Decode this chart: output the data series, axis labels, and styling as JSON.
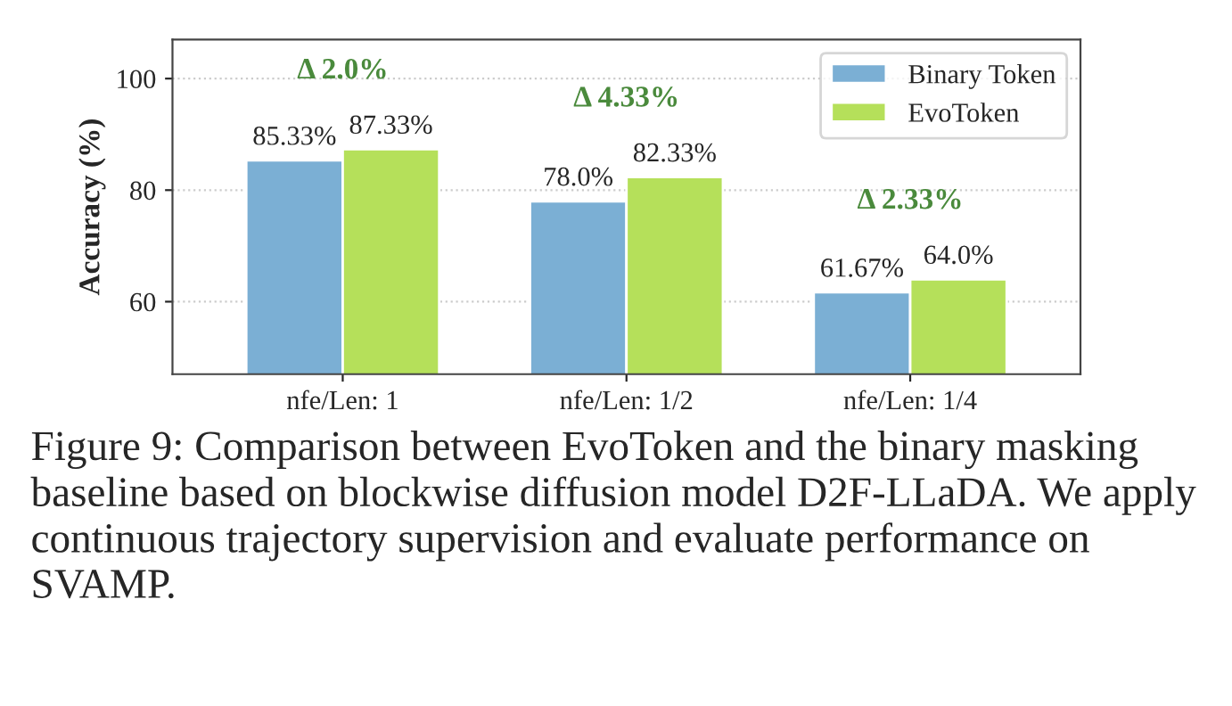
{
  "chart_data": {
    "type": "bar",
    "ylabel": "Accuracy (%)",
    "categories": [
      "nfe/Len: 1",
      "nfe/Len: 1/2",
      "nfe/Len: 1/4"
    ],
    "series": [
      {
        "name": "Binary Token",
        "color": "#7bafd4",
        "values": [
          85.33,
          78.0,
          61.67
        ],
        "value_labels": [
          "85.33%",
          "78.0%",
          "61.67%"
        ]
      },
      {
        "name": "EvoToken",
        "color": "#b5e05a",
        "values": [
          87.33,
          82.33,
          64.0
        ],
        "value_labels": [
          "87.33%",
          "82.33%",
          "64.0%"
        ]
      }
    ],
    "ylim": [
      47,
      107
    ],
    "yticks": [
      60,
      80,
      100
    ],
    "grid": "y",
    "legend": "top right",
    "annotations": [
      "Δ 2.0%",
      "Δ 4.33%",
      "Δ 2.33%",
      "Figure 9: Comparison between EvoToken and the binary masking baseline based on blockwise diffusion model D2F-LLaDA. We apply continuous trajectory supervision and evaluate performance on SVAMP."
    ]
  }
}
